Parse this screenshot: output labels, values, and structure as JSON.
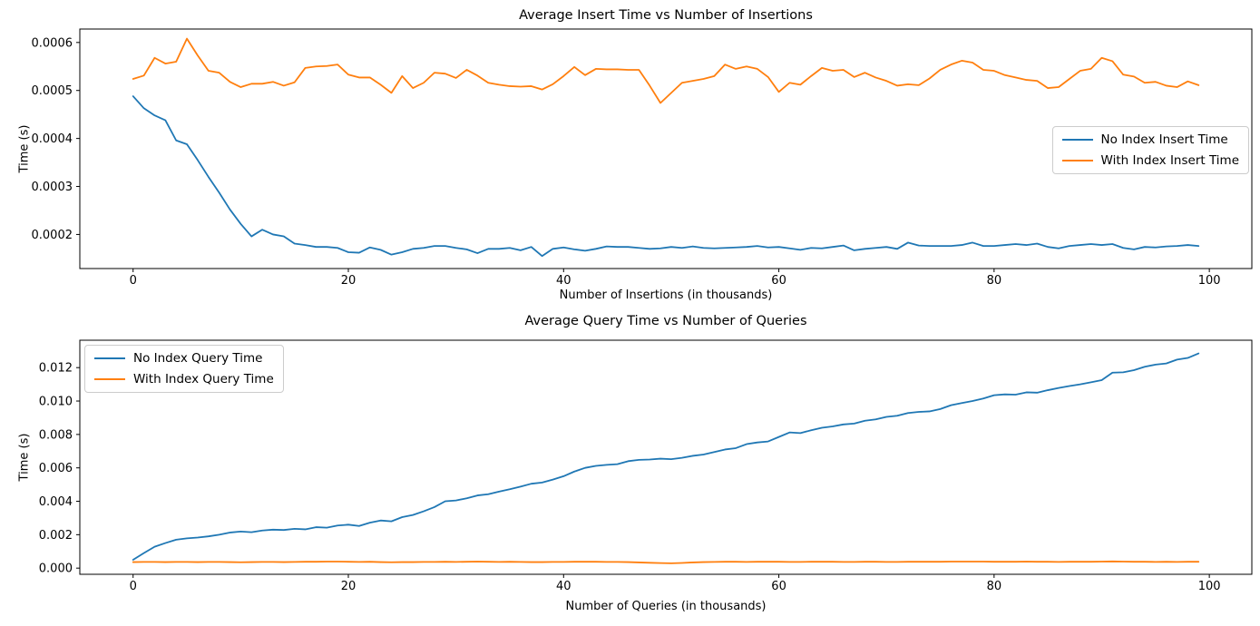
{
  "figure": {
    "background": "#ffffff",
    "text_color": "#000000"
  },
  "colors": {
    "series_blue": "#1f77b4",
    "series_orange": "#ff7f0e",
    "legend_border": "#cccccc"
  },
  "chart_data": [
    {
      "type": "line",
      "title": "Average Insert Time vs Number of Insertions",
      "xlabel": "Number of Insertions (in thousands)",
      "ylabel": "Time (s)",
      "x_start": 0,
      "x_step": 1,
      "n_points": 100,
      "xlim": [
        -4.95,
        103.95
      ],
      "ylim": [
        0.000129,
        0.000628
      ],
      "x_ticks": [
        0,
        20,
        40,
        60,
        80,
        100
      ],
      "x_tick_labels": [
        "0",
        "20",
        "40",
        "60",
        "80",
        "100"
      ],
      "y_ticks": [
        0.0002,
        0.0003,
        0.0004,
        0.0005,
        0.0006
      ],
      "y_tick_labels": [
        "0.0002",
        "0.0003",
        "0.0004",
        "0.0005",
        "0.0006"
      ],
      "grid": false,
      "legend_position": "center right",
      "series": [
        {
          "name": "No Index Insert Time",
          "color": "#1f77b4",
          "values": [
            0.000488,
            0.000463,
            0.000448,
            0.000438,
            0.000396,
            0.000388,
            0.000355,
            0.00032,
            0.000287,
            0.000252,
            0.000222,
            0.000196,
            0.00021,
            0.0002,
            0.000196,
            0.000181,
            0.000178,
            0.000174,
            0.000174,
            0.000172,
            0.000163,
            0.000162,
            0.000173,
            0.000168,
            0.000158,
            0.000163,
            0.00017,
            0.000172,
            0.000176,
            0.000176,
            0.000172,
            0.000169,
            0.000161,
            0.00017,
            0.00017,
            0.000172,
            0.000167,
            0.000174,
            0.000155,
            0.00017,
            0.000173,
            0.000169,
            0.000166,
            0.00017,
            0.000175,
            0.000174,
            0.000174,
            0.000172,
            0.00017,
            0.000171,
            0.000174,
            0.000172,
            0.000175,
            0.000172,
            0.000171,
            0.000172,
            0.000173,
            0.000174,
            0.000176,
            0.000173,
            0.000174,
            0.000171,
            0.000168,
            0.000172,
            0.000171,
            0.000174,
            0.000177,
            0.000167,
            0.00017,
            0.000172,
            0.000174,
            0.00017,
            0.000183,
            0.000177,
            0.000176,
            0.000176,
            0.000176,
            0.000178,
            0.000183,
            0.000176,
            0.000176,
            0.000178,
            0.00018,
            0.000178,
            0.000181,
            0.000174,
            0.000171,
            0.000176,
            0.000178,
            0.00018,
            0.000178,
            0.00018,
            0.000172,
            0.000169,
            0.000174,
            0.000173,
            0.000175,
            0.000176,
            0.000178,
            0.000176
          ]
        },
        {
          "name": "With Index Insert Time",
          "color": "#ff7f0e",
          "values": [
            0.000524,
            0.000531,
            0.000568,
            0.000556,
            0.00056,
            0.000608,
            0.000573,
            0.000541,
            0.000537,
            0.000518,
            0.000507,
            0.000514,
            0.000514,
            0.000518,
            0.00051,
            0.000517,
            0.000547,
            0.00055,
            0.000551,
            0.000554,
            0.000533,
            0.000527,
            0.000527,
            0.000512,
            0.000495,
            0.00053,
            0.000505,
            0.000516,
            0.000537,
            0.000535,
            0.000526,
            0.000543,
            0.000531,
            0.000516,
            0.000512,
            0.000509,
            0.000508,
            0.000509,
            0.000502,
            0.000513,
            0.00053,
            0.000549,
            0.000532,
            0.000545,
            0.000544,
            0.000544,
            0.000543,
            0.000543,
            0.00051,
            0.000474,
            0.000495,
            0.000516,
            0.00052,
            0.000524,
            0.00053,
            0.000554,
            0.000545,
            0.00055,
            0.000545,
            0.000528,
            0.000497,
            0.000516,
            0.000512,
            0.00053,
            0.000547,
            0.000541,
            0.000543,
            0.000528,
            0.000537,
            0.000527,
            0.00052,
            0.00051,
            0.000513,
            0.000511,
            0.000525,
            0.000543,
            0.000554,
            0.000562,
            0.000558,
            0.000543,
            0.000541,
            0.000532,
            0.000527,
            0.000522,
            0.00052,
            0.000505,
            0.000507,
            0.000524,
            0.000541,
            0.000545,
            0.000568,
            0.000561,
            0.000533,
            0.000529,
            0.000516,
            0.000518,
            0.00051,
            0.000507,
            0.000519,
            0.000511
          ]
        }
      ]
    },
    {
      "type": "line",
      "title": "Average Query Time vs Number of Queries",
      "xlabel": "Number of Queries (in thousands)",
      "ylabel": "Time (s)",
      "x_start": 0,
      "x_step": 1,
      "n_points": 100,
      "xlim": [
        -4.95,
        103.95
      ],
      "ylim": [
        -0.00037,
        0.01364
      ],
      "x_ticks": [
        0,
        20,
        40,
        60,
        80,
        100
      ],
      "x_tick_labels": [
        "0",
        "20",
        "40",
        "60",
        "80",
        "100"
      ],
      "y_ticks": [
        0.0,
        0.002,
        0.004,
        0.006,
        0.008,
        0.01,
        0.012
      ],
      "y_tick_labels": [
        "0.000",
        "0.002",
        "0.004",
        "0.006",
        "0.008",
        "0.010",
        "0.012"
      ],
      "grid": false,
      "legend_position": "upper left",
      "series": [
        {
          "name": "No Index Query Time",
          "color": "#1f77b4",
          "values": [
            0.0005,
            0.0009,
            0.00128,
            0.0015,
            0.0017,
            0.00178,
            0.00183,
            0.0019,
            0.002,
            0.00213,
            0.00219,
            0.00215,
            0.00225,
            0.0023,
            0.00228,
            0.00235,
            0.00232,
            0.00245,
            0.00242,
            0.00255,
            0.0026,
            0.00252,
            0.00272,
            0.00285,
            0.0028,
            0.00305,
            0.00318,
            0.0034,
            0.00365,
            0.004,
            0.00405,
            0.00418,
            0.00435,
            0.00442,
            0.00458,
            0.00472,
            0.00488,
            0.00505,
            0.00512,
            0.0053,
            0.0055,
            0.00578,
            0.006,
            0.00612,
            0.00618,
            0.00622,
            0.0064,
            0.00648,
            0.0065,
            0.00655,
            0.00652,
            0.0066,
            0.00672,
            0.0068,
            0.00695,
            0.0071,
            0.00718,
            0.00742,
            0.00752,
            0.00758,
            0.00785,
            0.00812,
            0.00808,
            0.00825,
            0.0084,
            0.00848,
            0.0086,
            0.00865,
            0.00882,
            0.0089,
            0.00905,
            0.00912,
            0.00928,
            0.00935,
            0.00938,
            0.00952,
            0.00975,
            0.00988,
            0.01,
            0.01015,
            0.01035,
            0.0104,
            0.01038,
            0.01052,
            0.0105,
            0.01065,
            0.01078,
            0.0109,
            0.011,
            0.01112,
            0.01125,
            0.0117,
            0.01172,
            0.01185,
            0.01205,
            0.01218,
            0.01225,
            0.01248,
            0.01258,
            0.01285
          ]
        },
        {
          "name": "With Index Query Time",
          "color": "#ff7f0e",
          "values": [
            0.00036,
            0.00037,
            0.00037,
            0.00036,
            0.00037,
            0.00037,
            0.00036,
            0.00037,
            0.00037,
            0.00036,
            0.00035,
            0.00036,
            0.00037,
            0.00037,
            0.00036,
            0.00037,
            0.00038,
            0.00038,
            0.00039,
            0.00039,
            0.00038,
            0.00037,
            0.00038,
            0.00036,
            0.00035,
            0.00036,
            0.00036,
            0.00037,
            0.00037,
            0.00038,
            0.00037,
            0.00038,
            0.00039,
            0.00038,
            0.00037,
            0.00038,
            0.00037,
            0.00036,
            0.00036,
            0.00037,
            0.00037,
            0.00038,
            0.00038,
            0.00038,
            0.00037,
            0.00037,
            0.00036,
            0.00034,
            0.00032,
            0.0003,
            0.00029,
            0.00031,
            0.00034,
            0.00036,
            0.00037,
            0.00038,
            0.00038,
            0.00037,
            0.00038,
            0.00038,
            0.00038,
            0.00037,
            0.00037,
            0.00038,
            0.00038,
            0.00038,
            0.00037,
            0.00037,
            0.00038,
            0.00038,
            0.00037,
            0.00037,
            0.00038,
            0.00038,
            0.00038,
            0.00038,
            0.00039,
            0.00039,
            0.00039,
            0.00039,
            0.00038,
            0.00038,
            0.00038,
            0.00039,
            0.00038,
            0.00038,
            0.00037,
            0.00038,
            0.00038,
            0.00038,
            0.00039,
            0.0004,
            0.00039,
            0.00038,
            0.00038,
            0.00037,
            0.00038,
            0.00037,
            0.00038,
            0.00038
          ]
        }
      ]
    }
  ]
}
